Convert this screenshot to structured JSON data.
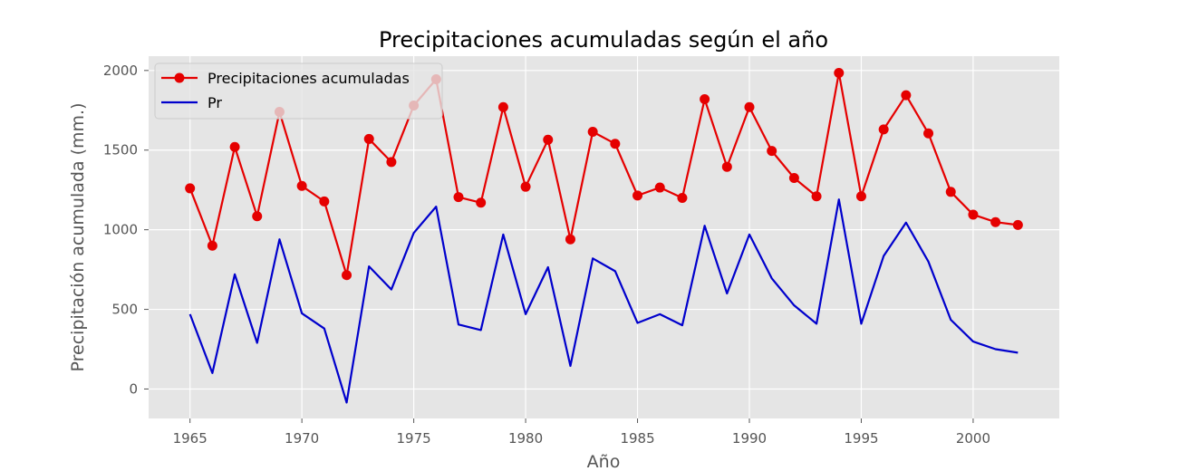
{
  "chart_data": {
    "type": "line",
    "title": "Precipitaciones acumuladas según el año",
    "xlabel": "Año",
    "ylabel": "Precipitación acumulada (mm.)",
    "xlim": [
      1963.15,
      2003.85
    ],
    "ylim": [
      -185,
      2090
    ],
    "xticks": [
      1965,
      1970,
      1975,
      1980,
      1985,
      1990,
      1995,
      2000
    ],
    "yticks": [
      0,
      500,
      1000,
      1500,
      2000
    ],
    "grid": true,
    "legend_position": "top-left",
    "x": [
      1965,
      1966,
      1967,
      1968,
      1969,
      1970,
      1971,
      1972,
      1973,
      1974,
      1975,
      1976,
      1977,
      1978,
      1979,
      1980,
      1981,
      1982,
      1983,
      1984,
      1985,
      1986,
      1987,
      1988,
      1989,
      1990,
      1991,
      1992,
      1993,
      1994,
      1995,
      1996,
      1997,
      1998,
      1999,
      2000,
      2001,
      2002
    ],
    "series": [
      {
        "name": "Precipitaciones acumuladas",
        "color": "#e50000",
        "marker": "circle",
        "values": [
          1260,
          900,
          1520,
          1085,
          1740,
          1275,
          1178,
          715,
          1570,
          1425,
          1780,
          1945,
          1205,
          1170,
          1770,
          1270,
          1565,
          940,
          1615,
          1540,
          1215,
          1265,
          1200,
          1820,
          1395,
          1770,
          1495,
          1325,
          1210,
          1985,
          1210,
          1630,
          1845,
          1605,
          1238,
          1095,
          1048,
          1030
        ]
      },
      {
        "name": "Pr",
        "color": "#0000cc",
        "marker": "none",
        "values": [
          470,
          100,
          720,
          290,
          940,
          475,
          380,
          -85,
          770,
          625,
          980,
          1145,
          405,
          370,
          970,
          470,
          765,
          145,
          820,
          740,
          415,
          470,
          400,
          1025,
          600,
          970,
          695,
          525,
          410,
          1190,
          410,
          835,
          1045,
          800,
          435,
          298,
          250,
          228
        ]
      }
    ]
  }
}
